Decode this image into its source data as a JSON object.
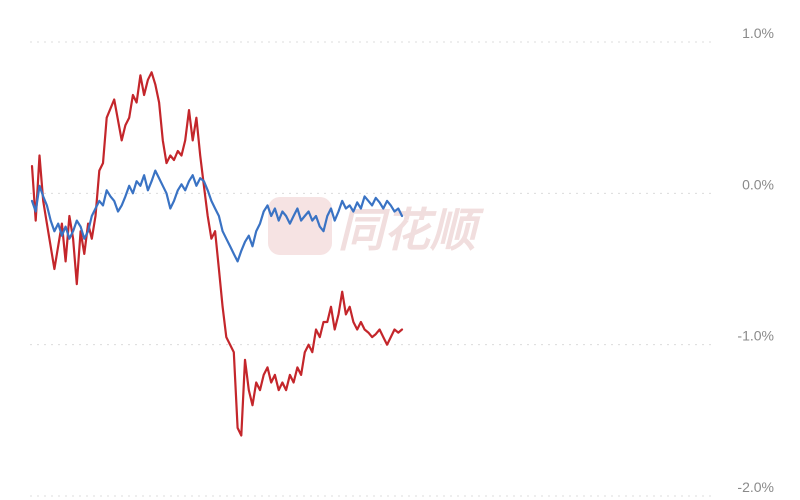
{
  "watermark": {
    "text": "同花顺",
    "color": "#f1dede"
  },
  "chart_data": {
    "type": "line",
    "title": "",
    "xlabel": "",
    "ylabel": "",
    "y_unit": "%",
    "ylim": [
      -2.0,
      1.0
    ],
    "y_ticks": [
      {
        "value": 1.0,
        "label": "1.0%"
      },
      {
        "value": 0.0,
        "label": "0.0%"
      },
      {
        "value": -1.0,
        "label": "-1.0%"
      },
      {
        "value": -2.0,
        "label": "-2.0%"
      }
    ],
    "grid": true,
    "x_count": 100,
    "series": [
      {
        "color": "#c4262b",
        "x": [
          0,
          1,
          2,
          3,
          4,
          6,
          8,
          9,
          10,
          11,
          12,
          13,
          14,
          15,
          16,
          17,
          18,
          19,
          20,
          22,
          24,
          25,
          26,
          27,
          28,
          29,
          30,
          31,
          32,
          33,
          34,
          35,
          36,
          37,
          38,
          39,
          40,
          41,
          42,
          43,
          44,
          45,
          46,
          47,
          48,
          49,
          50,
          51,
          52,
          53,
          54,
          55,
          56,
          57,
          58,
          59,
          60,
          61,
          62,
          63,
          64,
          65,
          66,
          67,
          68,
          69,
          70,
          71,
          72,
          73,
          74,
          75,
          76,
          77,
          78,
          79,
          80,
          81,
          82,
          83,
          84,
          85,
          86,
          87,
          88,
          89,
          90,
          91,
          92,
          93,
          94,
          95,
          96,
          97,
          98,
          99
        ],
        "values": [
          0.18,
          -0.18,
          0.25,
          -0.05,
          -0.2,
          -0.5,
          -0.2,
          -0.45,
          -0.15,
          -0.3,
          -0.6,
          -0.25,
          -0.4,
          -0.2,
          -0.3,
          -0.15,
          0.15,
          0.2,
          0.5,
          0.62,
          0.35,
          0.45,
          0.5,
          0.65,
          0.6,
          0.78,
          0.65,
          0.75,
          0.8,
          0.72,
          0.6,
          0.35,
          0.2,
          0.25,
          0.22,
          0.28,
          0.25,
          0.35,
          0.55,
          0.35,
          0.5,
          0.25,
          0.05,
          -0.15,
          -0.3,
          -0.25,
          -0.5,
          -0.75,
          -0.95,
          -1.0,
          -1.05,
          -1.55,
          -1.6,
          -1.1,
          -1.3,
          -1.4,
          -1.25,
          -1.3,
          -1.2,
          -1.15,
          -1.25,
          -1.2,
          -1.3,
          -1.25,
          -1.3,
          -1.2,
          -1.25,
          -1.15,
          -1.2,
          -1.05,
          -1.0,
          -1.05,
          -0.9,
          -0.95,
          -0.85,
          -0.85,
          -0.75,
          -0.9,
          -0.8,
          -0.65,
          -0.8,
          -0.75,
          -0.85,
          -0.9,
          -0.85,
          -0.9,
          -0.92,
          -0.95,
          -0.93,
          -0.9,
          -0.95,
          -1.0,
          -0.95,
          -0.9,
          -0.92,
          -0.9
        ]
      },
      {
        "color": "#3a73c4",
        "x": [
          0,
          1,
          2,
          3,
          4,
          5,
          6,
          7,
          8,
          9,
          10,
          11,
          12,
          13,
          14,
          15,
          16,
          17,
          18,
          19,
          20,
          21,
          22,
          23,
          24,
          25,
          26,
          27,
          28,
          29,
          30,
          31,
          32,
          33,
          34,
          35,
          36,
          37,
          38,
          39,
          40,
          41,
          42,
          43,
          44,
          45,
          46,
          47,
          48,
          49,
          50,
          51,
          52,
          53,
          54,
          55,
          56,
          57,
          58,
          59,
          60,
          61,
          62,
          63,
          64,
          65,
          66,
          67,
          68,
          69,
          70,
          71,
          72,
          73,
          74,
          75,
          76,
          77,
          78,
          79,
          80,
          81,
          82,
          83,
          84,
          85,
          86,
          87,
          88,
          89,
          90,
          91,
          92,
          93,
          94,
          95,
          96,
          97,
          98,
          99
        ],
        "values": [
          -0.05,
          -0.12,
          0.05,
          -0.02,
          -0.08,
          -0.18,
          -0.25,
          -0.2,
          -0.28,
          -0.22,
          -0.3,
          -0.25,
          -0.18,
          -0.22,
          -0.3,
          -0.25,
          -0.15,
          -0.1,
          -0.05,
          -0.08,
          0.02,
          -0.02,
          -0.05,
          -0.12,
          -0.08,
          -0.02,
          0.05,
          0.0,
          0.08,
          0.05,
          0.12,
          0.02,
          0.08,
          0.15,
          0.1,
          0.05,
          0.0,
          -0.1,
          -0.05,
          0.02,
          0.06,
          0.02,
          0.08,
          0.12,
          0.05,
          0.1,
          0.08,
          0.02,
          -0.05,
          -0.1,
          -0.15,
          -0.25,
          -0.3,
          -0.35,
          -0.4,
          -0.45,
          -0.38,
          -0.32,
          -0.28,
          -0.35,
          -0.25,
          -0.2,
          -0.12,
          -0.08,
          -0.15,
          -0.1,
          -0.18,
          -0.12,
          -0.15,
          -0.2,
          -0.15,
          -0.1,
          -0.18,
          -0.15,
          -0.12,
          -0.18,
          -0.15,
          -0.22,
          -0.25,
          -0.15,
          -0.1,
          -0.18,
          -0.12,
          -0.05,
          -0.1,
          -0.08,
          -0.12,
          -0.06,
          -0.1,
          -0.02,
          -0.05,
          -0.08,
          -0.03,
          -0.06,
          -0.1,
          -0.05,
          -0.08,
          -0.12,
          -0.1,
          -0.15
        ]
      }
    ]
  }
}
